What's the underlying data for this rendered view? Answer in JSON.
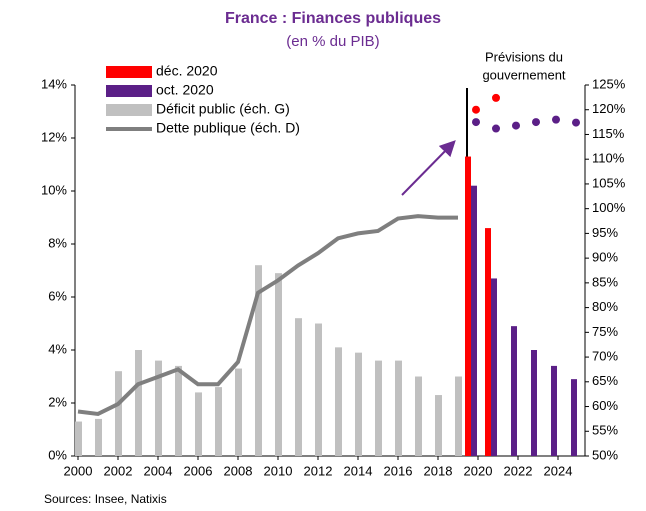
{
  "chart_data": {
    "type": "bar",
    "title": "France : Finances publiques",
    "subtitle": "(en % du PIB)",
    "annotation": [
      "Prévisions du",
      "gouvernement"
    ],
    "source": "Sources: Insee, Natixis",
    "x": [
      2000,
      2001,
      2002,
      2003,
      2004,
      2005,
      2006,
      2007,
      2008,
      2009,
      2010,
      2011,
      2012,
      2013,
      2014,
      2015,
      2016,
      2017,
      2018,
      2019,
      2020,
      2021,
      2022,
      2023,
      2024,
      2025
    ],
    "xlim": [
      1999.85,
      2025.35
    ],
    "xticks": [
      2000,
      2002,
      2004,
      2006,
      2008,
      2010,
      2012,
      2014,
      2016,
      2018,
      2020,
      2022,
      2024
    ],
    "ylim": [
      0,
      14
    ],
    "yticks": [
      {
        "value": 0,
        "label": "0%"
      },
      {
        "value": 2,
        "label": "2%"
      },
      {
        "value": 4,
        "label": "4%"
      },
      {
        "value": 6,
        "label": "6%"
      },
      {
        "value": 8,
        "label": "8%"
      },
      {
        "value": 10,
        "label": "10%"
      },
      {
        "value": 12,
        "label": "12%"
      },
      {
        "value": 14,
        "label": "14%"
      }
    ],
    "y2lim": [
      50,
      125
    ],
    "y2ticks": [
      {
        "value": 50,
        "label": "50%"
      },
      {
        "value": 55,
        "label": "55%"
      },
      {
        "value": 60,
        "label": "60%"
      },
      {
        "value": 65,
        "label": "65%"
      },
      {
        "value": 70,
        "label": "70%"
      },
      {
        "value": 75,
        "label": "75%"
      },
      {
        "value": 80,
        "label": "80%"
      },
      {
        "value": 85,
        "label": "85%"
      },
      {
        "value": 90,
        "label": "90%"
      },
      {
        "value": 95,
        "label": "95%"
      },
      {
        "value": 100,
        "label": "100%"
      },
      {
        "value": 105,
        "label": "105%"
      },
      {
        "value": 110,
        "label": "110%"
      },
      {
        "value": 115,
        "label": "115%"
      },
      {
        "value": 120,
        "label": "120%"
      },
      {
        "value": 125,
        "label": "125%"
      }
    ],
    "series": [
      {
        "name": "déc. 2020",
        "color": "#ff0000",
        "kind": "bar",
        "values": [
          null,
          null,
          null,
          null,
          null,
          null,
          null,
          null,
          null,
          null,
          null,
          null,
          null,
          null,
          null,
          null,
          null,
          null,
          null,
          null,
          11.3,
          8.6,
          null,
          null,
          null,
          null
        ],
        "debt": [
          null,
          null,
          null,
          null,
          null,
          null,
          null,
          null,
          null,
          null,
          null,
          null,
          null,
          null,
          null,
          null,
          null,
          null,
          null,
          null,
          120,
          122.4,
          null,
          null,
          null,
          null
        ]
      },
      {
        "name": "oct. 2020",
        "color": "#5b1f87",
        "kind": "bar",
        "values": [
          null,
          null,
          null,
          null,
          null,
          null,
          null,
          null,
          null,
          null,
          null,
          null,
          null,
          null,
          null,
          null,
          null,
          null,
          null,
          null,
          10.2,
          6.7,
          4.9,
          4.0,
          3.4,
          2.9
        ],
        "debt": [
          null,
          null,
          null,
          null,
          null,
          null,
          null,
          null,
          null,
          null,
          null,
          null,
          null,
          null,
          null,
          null,
          null,
          null,
          null,
          null,
          117.5,
          116.2,
          116.8,
          117.5,
          118,
          117.4
        ]
      },
      {
        "name": "Déficit public (éch. G)",
        "color": "#c0c0c0",
        "kind": "bar",
        "values": [
          1.3,
          1.4,
          3.2,
          4.0,
          3.6,
          3.4,
          2.4,
          2.6,
          3.3,
          7.2,
          6.9,
          5.2,
          5.0,
          4.1,
          3.9,
          3.6,
          3.6,
          3.0,
          2.3,
          3.0,
          null,
          null,
          null,
          null,
          null,
          null
        ]
      },
      {
        "name": "Dette publique (éch. D)",
        "color": "#7f7f7f",
        "kind": "line",
        "axis": "y2",
        "values": [
          59,
          58.5,
          60.5,
          64.5,
          66,
          67.5,
          64.5,
          64.5,
          69,
          83,
          85.5,
          88.5,
          91,
          94,
          95,
          95.5,
          98,
          98.5,
          98.2,
          98.2,
          null,
          null,
          null,
          null,
          null,
          null
        ]
      }
    ]
  }
}
